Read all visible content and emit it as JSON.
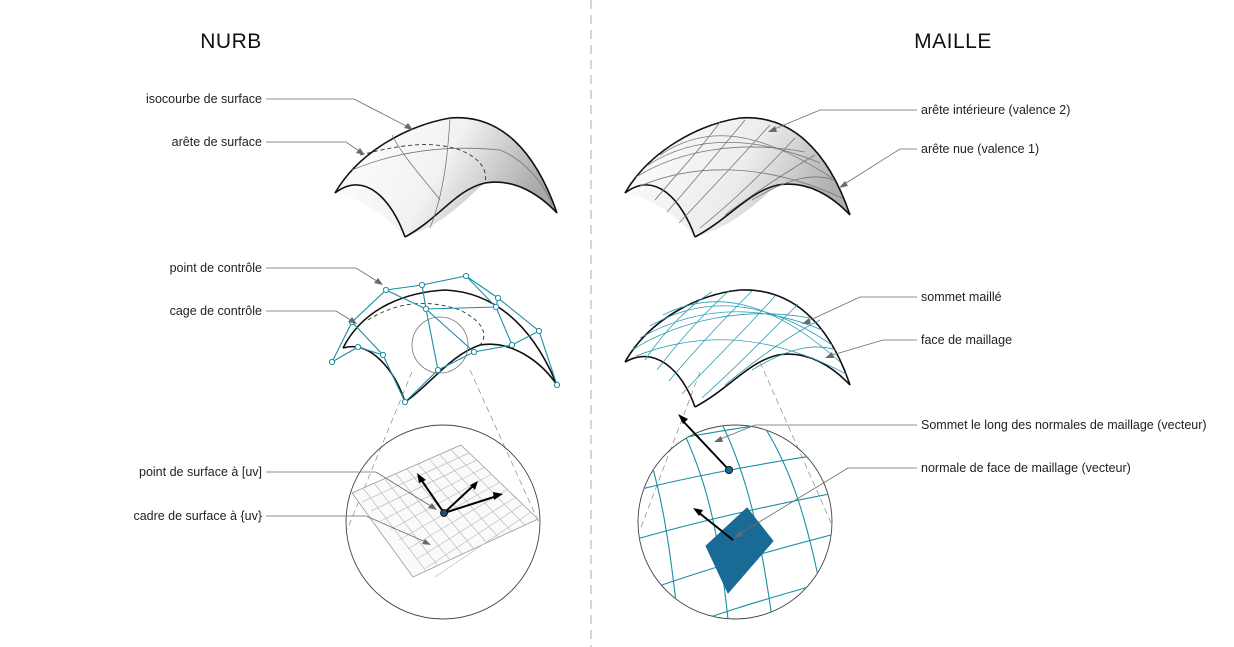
{
  "titles": {
    "left": "NURB",
    "right": "MAILLE"
  },
  "labels": {
    "isocurve": "isocourbe de surface",
    "surface_edge": "arête de surface",
    "control_point": "point de contrôle",
    "control_cage": "cage de contrôle",
    "surface_point": "point de surface à [uv]",
    "surface_frame": "cadre de surface à {uv}",
    "interior_edge": "arête intérieure (valence 2)",
    "naked_edge": "arête nue (valence 1)",
    "mesh_vertex": "sommet maillé",
    "mesh_face": "face de maillage",
    "vertex_normals": "Sommet le long des normales de maillage (vecteur)",
    "face_normal": "normale de face de maillage (vecteur)"
  },
  "colors": {
    "accent": "#1a8fa6",
    "face_fill": "#1a6a96",
    "divider": "#bbbbbb"
  }
}
